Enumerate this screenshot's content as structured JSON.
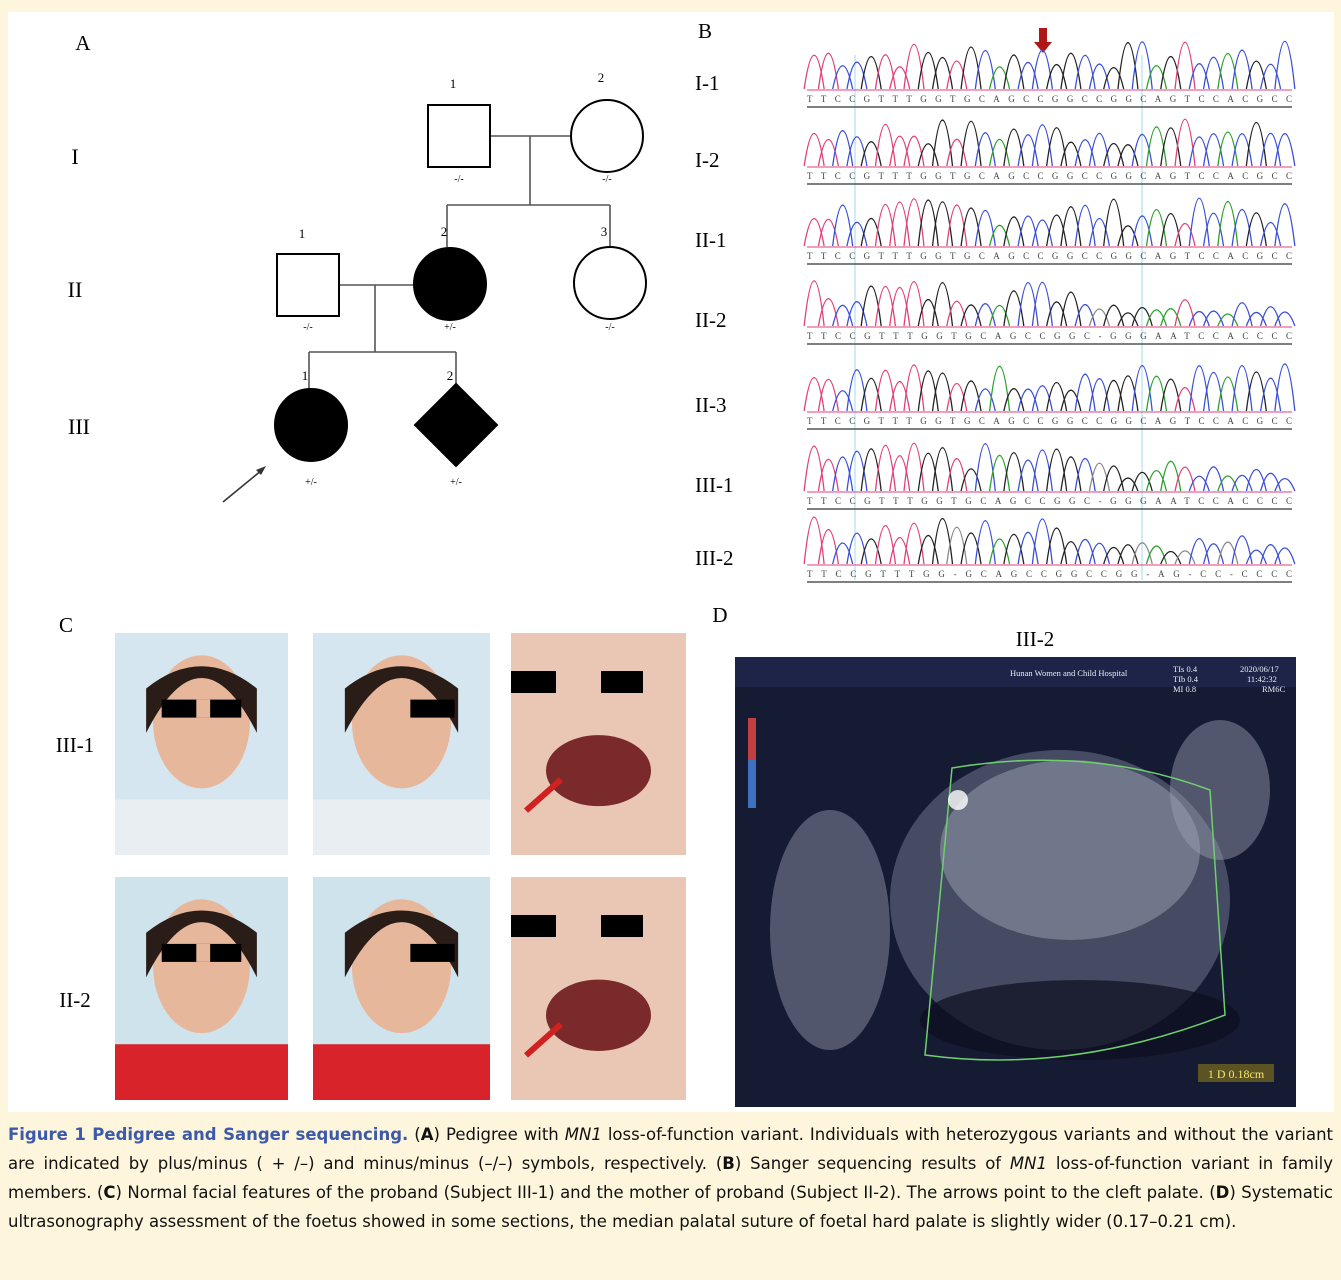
{
  "figure": {
    "panel_labels": [
      "A",
      "B",
      "C",
      "D"
    ],
    "pedigree": {
      "generations": [
        "I",
        "II",
        "III"
      ],
      "individuals": [
        {
          "number": "1",
          "genotype": "-/-",
          "shape": "square",
          "affected": false
        },
        {
          "number": "2",
          "genotype": "-/-",
          "shape": "circle",
          "affected": false
        },
        {
          "number": "1",
          "genotype": "-/-",
          "shape": "square",
          "affected": false
        },
        {
          "number": "2",
          "genotype": "+/-",
          "shape": "circle",
          "affected": true
        },
        {
          "number": "3",
          "genotype": "-/-",
          "shape": "circle",
          "affected": false
        },
        {
          "number": "1",
          "genotype": "+/-",
          "shape": "circle",
          "affected": true
        },
        {
          "number": "2",
          "genotype": "+/-",
          "shape": "diamond",
          "affected": true
        }
      ]
    },
    "sanger": [
      {
        "label": "I-1",
        "sequence": "TTCCGTTTGGTGCAGCCGGCCGGCAGTCCACGCC"
      },
      {
        "label": "I-2",
        "sequence": "TTCCGTTTGGTGCAGCCGGCCGGCAGTCCACGCC"
      },
      {
        "label": "II-1",
        "sequence": "TTCCGTTTGGTGCAGCCGGCCGGCAGTCCACGCC"
      },
      {
        "label": "II-2",
        "sequence": "TTCCGTTTGGTGCAGCCGGC-GGGAATCCACCCC"
      },
      {
        "label": "II-3",
        "sequence": "TTCCGTTTGGTGCAGCCGGCCGGCAGTCCACGCC"
      },
      {
        "label": "III-1",
        "sequence": "TTCCGTTTGGTGCAGCCGGC-GGGAATCCACCCC"
      },
      {
        "label": "III-2",
        "sequence": "TTCCGTTTGG-GCAGCCGGCCGG-AG-CC-CCCC"
      }
    ],
    "photos": {
      "row_labels": [
        "III-1",
        "II-2"
      ]
    },
    "ultrasound": {
      "title": "III-2",
      "hospital": "Hunan Women and Child Hospital",
      "params": [
        "TIs 0.4",
        "TIb 0.4",
        "MI 0.8"
      ],
      "date": "2020/06/17",
      "time": "11:42:32",
      "mode": "RM6C",
      "measurement": "1 D 0.18cm"
    },
    "caption": [
      {
        "text": "Figure 1 Pedigree and Sanger sequencing.",
        "bold": true,
        "blue": true
      },
      {
        "text": " ("
      },
      {
        "text": "A",
        "bold": true
      },
      {
        "text": ") Pedigree with "
      },
      {
        "text": "MN1",
        "italic": true
      },
      {
        "text": " loss-of-function variant. Individuals with heterozygous variants and without the variant are indicated by plus/minus ( + /–) and minus/minus (–/–) symbols, respectively. ("
      },
      {
        "text": "B",
        "bold": true
      },
      {
        "text": ") Sanger sequencing results of "
      },
      {
        "text": "MN1",
        "italic": true
      },
      {
        "text": " loss-of-function variant in family members. ("
      },
      {
        "text": "C",
        "bold": true
      },
      {
        "text": ") Normal facial features of the proband (Subject III-1) and the mother of proband (Subject II-2). The arrows point to the cleft palate. ("
      },
      {
        "text": "D",
        "bold": true
      },
      {
        "text": ") Systematic ultrasonography assessment of the foetus showed in some sections, the median palatal suture of foetal hard palate is slightly wider (0.17–0.21 cm)."
      }
    ]
  }
}
